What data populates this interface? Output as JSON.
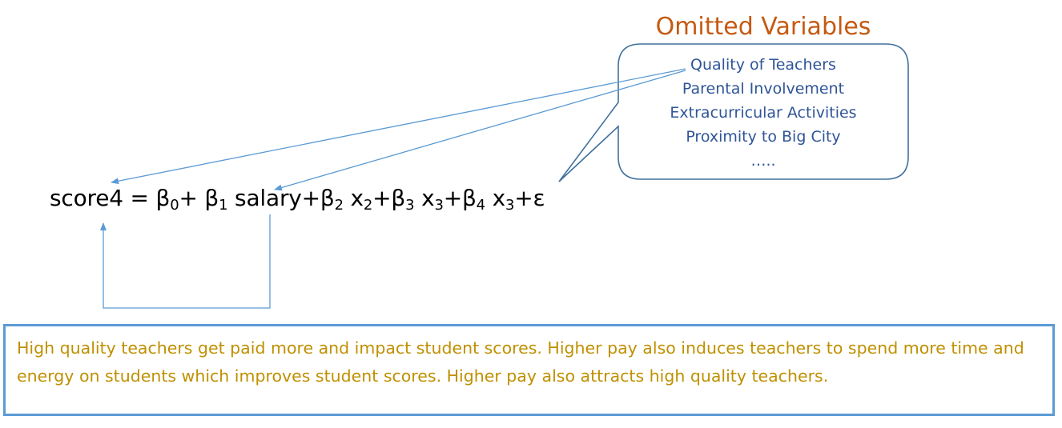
{
  "callout": {
    "title": "Omitted Variables",
    "items": [
      "Quality of Teachers",
      "Parental Involvement",
      "Extracurricular Activities",
      "Proximity to Big City",
      "….."
    ]
  },
  "equation": {
    "lhs": "score4 = β",
    "beta0_sub": "0",
    "plus_beta1": "+ β",
    "beta1_sub": "1",
    "salary_term": " salary+β",
    "beta2_sub": "2",
    "x2": " x",
    "x2_sub": "2",
    "plus_beta3": "+β",
    "beta3_sub": "3",
    "x3a": " x",
    "x3a_sub": "3",
    "plus_beta4": "+β",
    "beta4_sub": "4",
    "x3b": " x",
    "x3b_sub": "3",
    "error": "+ε"
  },
  "explanation": "High quality teachers get paid more and impact student scores. Higher pay also induces teachers to spend more time and energy on students which improves student scores. Higher pay also attracts high quality teachers.",
  "colors": {
    "title": "#c55a11",
    "callout_text": "#2f5597",
    "callout_border": "#41719c",
    "arrow": "#5b9bd5",
    "explanation_text": "#bf9000",
    "explanation_border": "#5b9bd5"
  }
}
